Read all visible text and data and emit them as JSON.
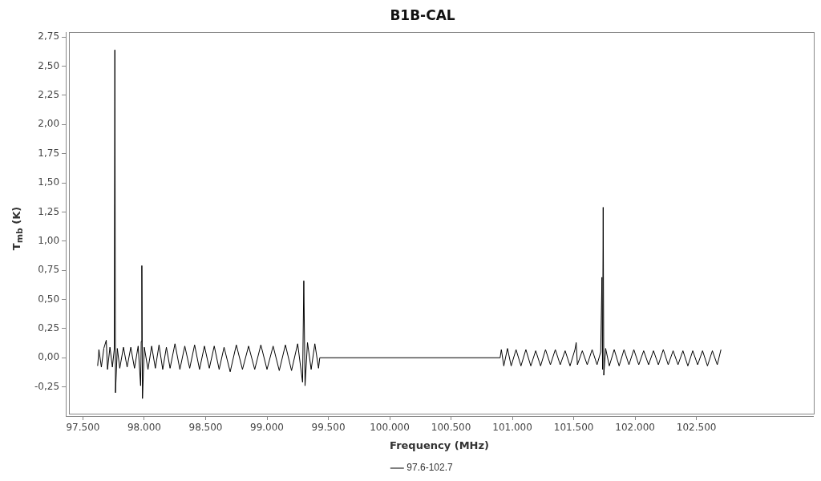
{
  "chart_data": {
    "type": "line",
    "title": "B1B-CAL",
    "xlabel": "Frequency (MHz)",
    "ylabel": "T$_{mb}$ (K)",
    "xlim": [
      97360,
      103450
    ],
    "ylim": [
      -0.5,
      2.79
    ],
    "xticks": [
      {
        "value": 97500,
        "label": "97.500"
      },
      {
        "value": 98000,
        "label": "98.000"
      },
      {
        "value": 98500,
        "label": "98.500"
      },
      {
        "value": 99000,
        "label": "99.000"
      },
      {
        "value": 99500,
        "label": "99.500"
      },
      {
        "value": 100000,
        "label": "100.000"
      },
      {
        "value": 100500,
        "label": "100.500"
      },
      {
        "value": 101000,
        "label": "101.000"
      },
      {
        "value": 101500,
        "label": "101.500"
      },
      {
        "value": 102000,
        "label": "102.000"
      },
      {
        "value": 102500,
        "label": "102.500"
      }
    ],
    "yticks": [
      {
        "value": -0.25,
        "label": "-0,25"
      },
      {
        "value": 0,
        "label": "0,00"
      },
      {
        "value": 0.25,
        "label": "0,25"
      },
      {
        "value": 0.5,
        "label": "0,50"
      },
      {
        "value": 0.75,
        "label": "0,75"
      },
      {
        "value": 1,
        "label": "1,00"
      },
      {
        "value": 1.25,
        "label": "1,25"
      },
      {
        "value": 1.5,
        "label": "1,50"
      },
      {
        "value": 1.75,
        "label": "1,75"
      },
      {
        "value": 2,
        "label": "2,00"
      },
      {
        "value": 2.25,
        "label": "2,25"
      },
      {
        "value": 2.5,
        "label": "2,50"
      },
      {
        "value": 2.75,
        "label": "2,75"
      }
    ],
    "grid": false,
    "legend": "bottom",
    "marker": "none",
    "line_style": "solid",
    "series": [
      {
        "name": "97.6-102.7",
        "color": "#000000",
        "x": [
          97620,
          97630,
          97650,
          97670,
          97690,
          97700,
          97720,
          97740,
          97755,
          97760,
          97765,
          97780,
          97800,
          97830,
          97860,
          97890,
          97920,
          97950,
          97970,
          97975,
          97980,
          97985,
          98000,
          98030,
          98060,
          98090,
          98120,
          98150,
          98180,
          98210,
          98250,
          98290,
          98330,
          98370,
          98410,
          98450,
          98490,
          98530,
          98570,
          98610,
          98650,
          98700,
          98750,
          98800,
          98850,
          98900,
          98950,
          99000,
          99050,
          99100,
          99150,
          99200,
          99250,
          99290,
          99300,
          99310,
          99330,
          99360,
          99390,
          99420,
          99430,
          100900,
          100910,
          100930,
          100960,
          100990,
          101030,
          101070,
          101110,
          101150,
          101190,
          101230,
          101270,
          101310,
          101350,
          101390,
          101430,
          101470,
          101510,
          101520,
          101530,
          101570,
          101610,
          101650,
          101690,
          101720,
          101730,
          101735,
          101740,
          101745,
          101760,
          101790,
          101830,
          101870,
          101910,
          101950,
          101990,
          102030,
          102070,
          102110,
          102150,
          102190,
          102230,
          102270,
          102310,
          102350,
          102390,
          102430,
          102470,
          102510,
          102550,
          102590,
          102630,
          102670,
          102700
        ],
        "values": [
          -0.07,
          0.07,
          -0.08,
          0.08,
          0.15,
          -0.1,
          0.09,
          -0.08,
          0.07,
          2.64,
          -0.3,
          0.08,
          -0.09,
          0.09,
          -0.08,
          0.09,
          -0.09,
          0.1,
          -0.24,
          0.14,
          0.79,
          -0.35,
          0.09,
          -0.1,
          0.1,
          -0.09,
          0.11,
          -0.1,
          0.09,
          -0.09,
          0.12,
          -0.1,
          0.1,
          -0.09,
          0.11,
          -0.1,
          0.1,
          -0.09,
          0.1,
          -0.1,
          0.09,
          -0.12,
          0.11,
          -0.1,
          0.1,
          -0.1,
          0.11,
          -0.1,
          0.1,
          -0.11,
          0.11,
          -0.11,
          0.12,
          -0.21,
          0.66,
          -0.24,
          0.13,
          -0.1,
          0.12,
          -0.09,
          0.0,
          0.0,
          0.07,
          -0.07,
          0.08,
          -0.07,
          0.07,
          -0.07,
          0.07,
          -0.07,
          0.06,
          -0.07,
          0.07,
          -0.06,
          0.07,
          -0.06,
          0.06,
          -0.07,
          0.07,
          0.13,
          -0.06,
          0.06,
          -0.06,
          0.07,
          -0.06,
          0.05,
          0.69,
          -0.1,
          1.29,
          -0.15,
          0.08,
          -0.07,
          0.07,
          -0.07,
          0.07,
          -0.06,
          0.07,
          -0.06,
          0.06,
          -0.06,
          0.06,
          -0.06,
          0.07,
          -0.06,
          0.06,
          -0.06,
          0.06,
          -0.07,
          0.06,
          -0.06,
          0.06,
          -0.07,
          0.06,
          -0.06,
          0.07
        ]
      }
    ]
  }
}
